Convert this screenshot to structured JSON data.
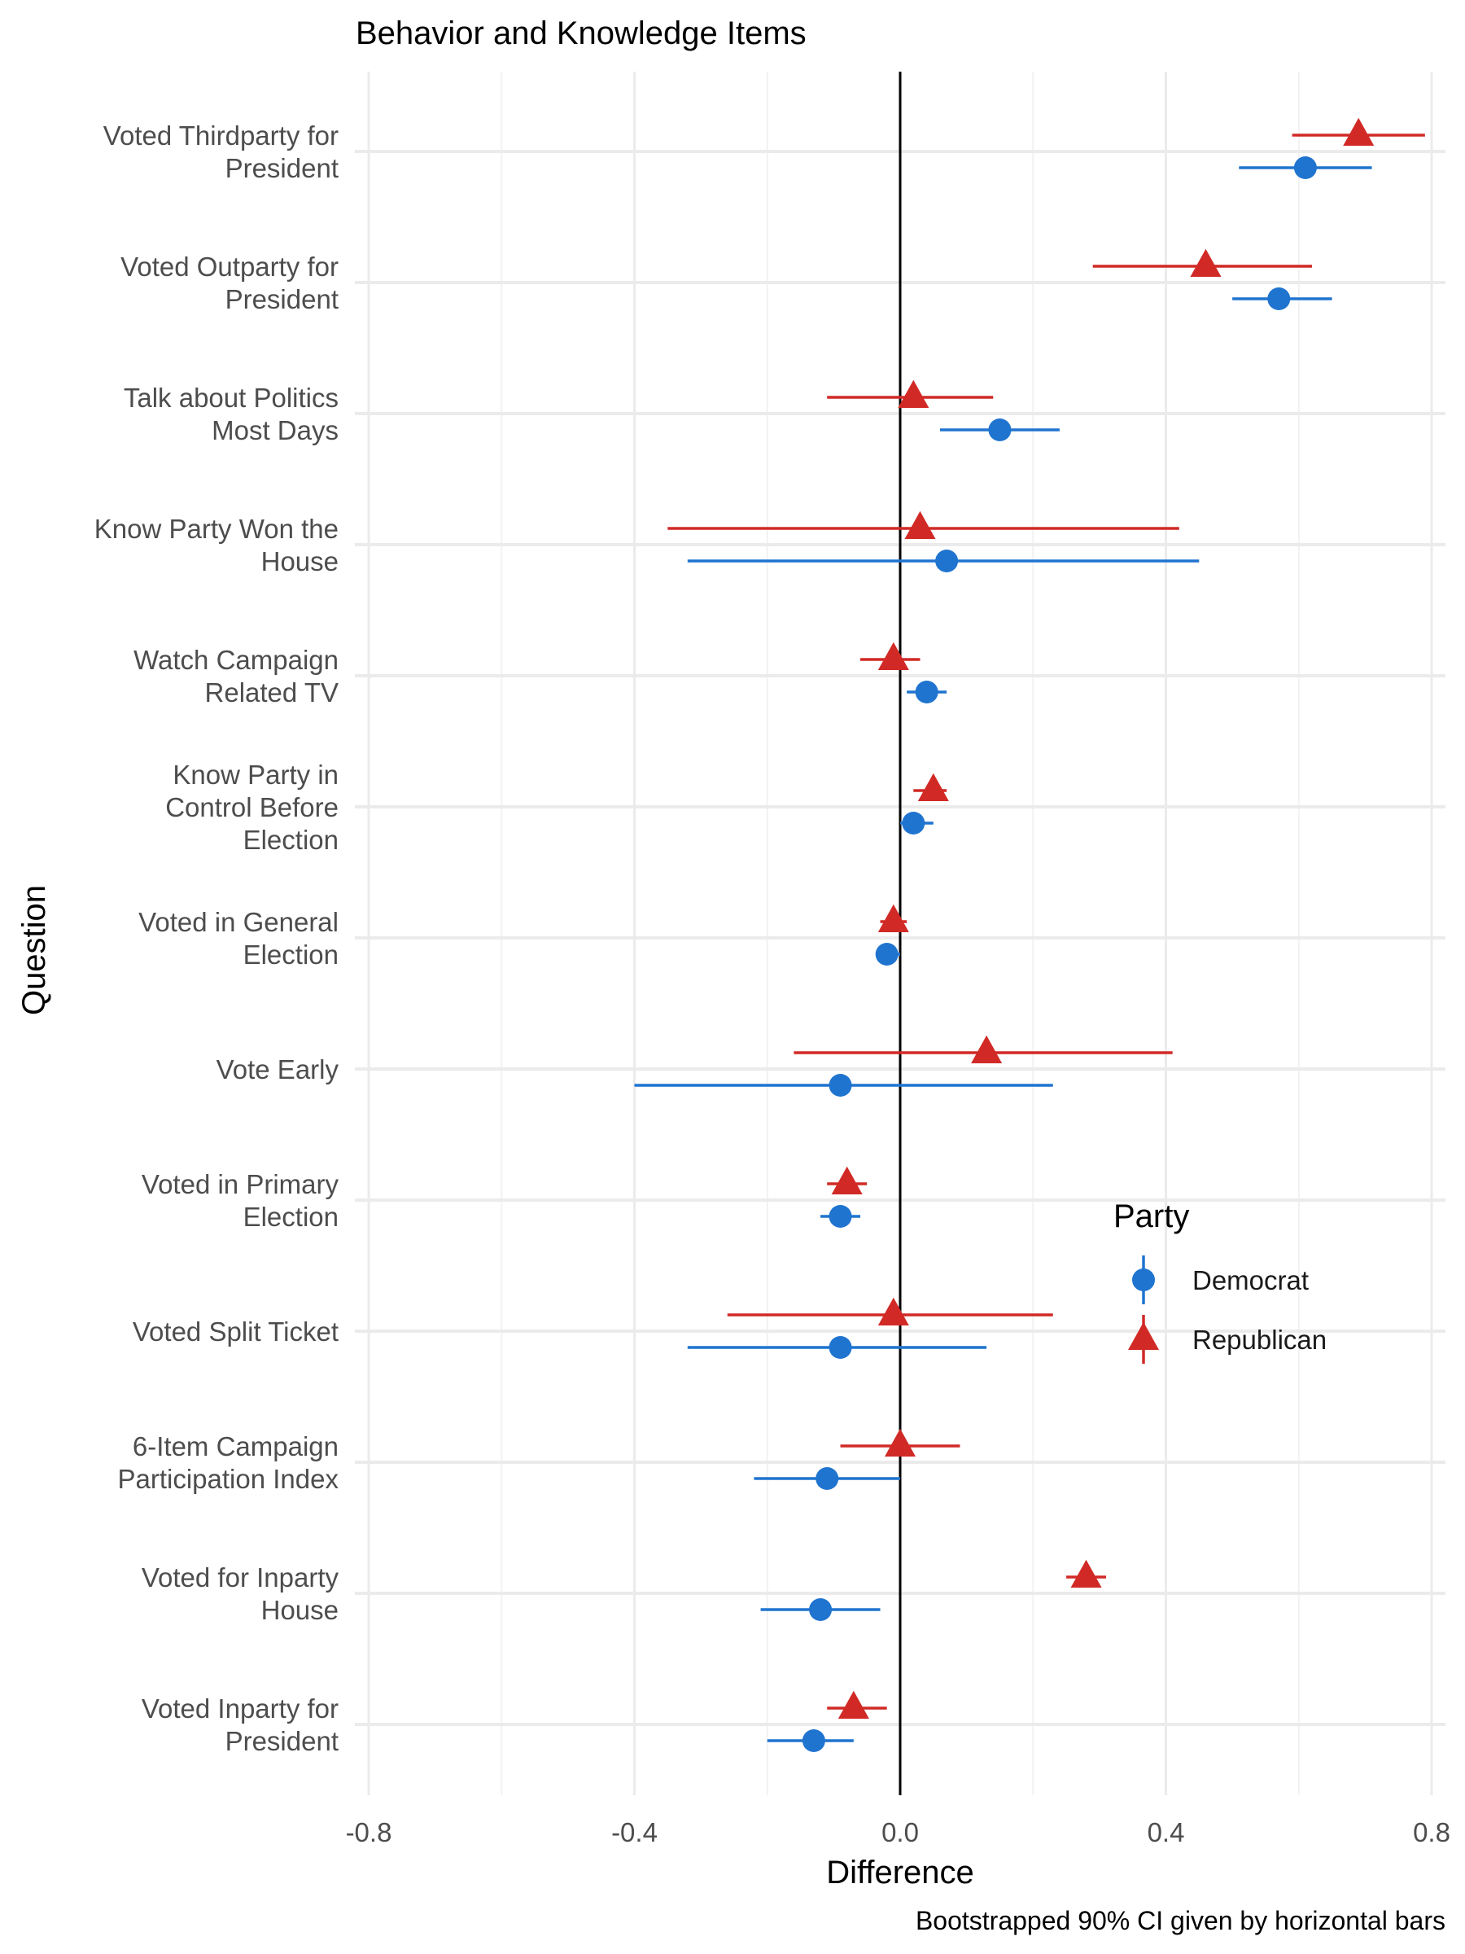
{
  "chart_data": {
    "type": "scatter",
    "title": "Behavior and Knowledge Items",
    "xlabel": "Difference",
    "ylabel": "Question",
    "caption": "Bootstrapped 90% CI given by horizontal bars",
    "xlim": [
      -0.8,
      0.8
    ],
    "xticks": [
      -0.8,
      -0.4,
      0.0,
      0.4,
      0.8
    ],
    "xtick_labels": [
      "-0.8",
      "-0.4",
      "0.0",
      "0.4",
      "0.8"
    ],
    "grid": true,
    "reference_line_x": 0,
    "legend": {
      "title": "Party",
      "placement": "right-inside",
      "entries": [
        "Democrat",
        "Republican"
      ]
    },
    "colors": {
      "Democrat": "#1f74cf",
      "Republican": "#d12a26"
    },
    "markers": {
      "Democrat": "circle",
      "Republican": "triangle"
    },
    "categories": [
      [
        "Voted Thirdparty for",
        "President"
      ],
      [
        "Voted Outparty for",
        "President"
      ],
      [
        "Talk about Politics",
        "Most Days"
      ],
      [
        "Know Party Won the",
        "House"
      ],
      [
        "Watch Campaign",
        "Related TV"
      ],
      [
        "Know Party in",
        "Control Before",
        "Election"
      ],
      [
        "Voted in General",
        "Election"
      ],
      [
        "Vote Early"
      ],
      [
        "Voted in Primary",
        "Election"
      ],
      [
        "Voted Split Ticket"
      ],
      [
        "6-Item Campaign",
        "Participation Index"
      ],
      [
        "Voted for Inparty",
        "House"
      ],
      [
        "Voted Inparty for",
        "President"
      ]
    ],
    "series": [
      {
        "name": "Democrat",
        "values": [
          {
            "est": 0.61,
            "lo": 0.51,
            "hi": 0.71
          },
          {
            "est": 0.57,
            "lo": 0.5,
            "hi": 0.65
          },
          {
            "est": 0.15,
            "lo": 0.06,
            "hi": 0.24
          },
          {
            "est": 0.07,
            "lo": -0.32,
            "hi": 0.45
          },
          {
            "est": 0.04,
            "lo": 0.01,
            "hi": 0.07
          },
          {
            "est": 0.02,
            "lo": 0.0,
            "hi": 0.05
          },
          {
            "est": -0.02,
            "lo": -0.03,
            "hi": 0.0
          },
          {
            "est": -0.09,
            "lo": -0.4,
            "hi": 0.23
          },
          {
            "est": -0.09,
            "lo": -0.12,
            "hi": -0.06
          },
          {
            "est": -0.09,
            "lo": -0.32,
            "hi": 0.13
          },
          {
            "est": -0.11,
            "lo": -0.22,
            "hi": 0.0
          },
          {
            "est": -0.12,
            "lo": -0.21,
            "hi": -0.03
          },
          {
            "est": -0.13,
            "lo": -0.2,
            "hi": -0.07
          }
        ]
      },
      {
        "name": "Republican",
        "values": [
          {
            "est": 0.69,
            "lo": 0.59,
            "hi": 0.79
          },
          {
            "est": 0.46,
            "lo": 0.29,
            "hi": 0.62
          },
          {
            "est": 0.02,
            "lo": -0.11,
            "hi": 0.14
          },
          {
            "est": 0.03,
            "lo": -0.35,
            "hi": 0.42
          },
          {
            "est": -0.01,
            "lo": -0.06,
            "hi": 0.03
          },
          {
            "est": 0.05,
            "lo": 0.02,
            "hi": 0.07
          },
          {
            "est": -0.01,
            "lo": -0.03,
            "hi": 0.01
          },
          {
            "est": 0.13,
            "lo": -0.16,
            "hi": 0.41
          },
          {
            "est": -0.08,
            "lo": -0.11,
            "hi": -0.05
          },
          {
            "est": -0.01,
            "lo": -0.26,
            "hi": 0.23
          },
          {
            "est": 0.0,
            "lo": -0.09,
            "hi": 0.09
          },
          {
            "est": 0.28,
            "lo": 0.25,
            "hi": 0.31
          },
          {
            "est": -0.07,
            "lo": -0.11,
            "hi": -0.02
          }
        ]
      }
    ]
  }
}
